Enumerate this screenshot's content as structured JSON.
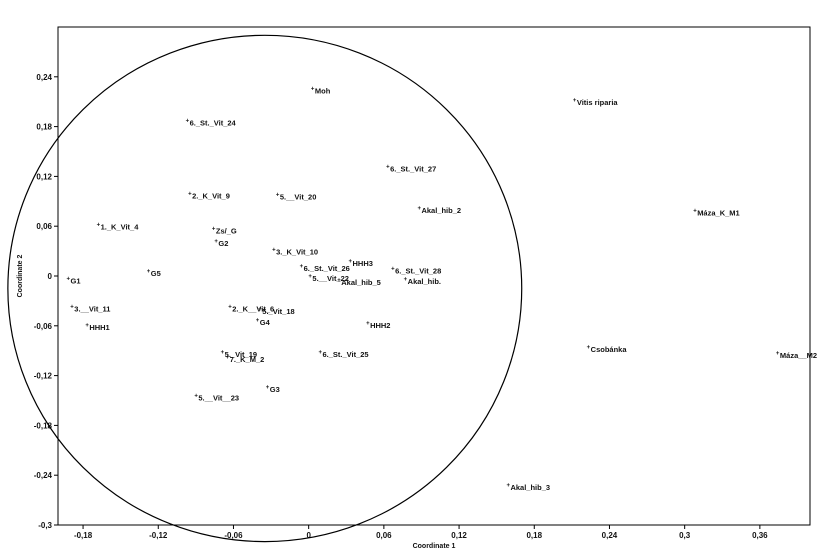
{
  "chart_data": {
    "type": "scatter",
    "title": "",
    "xlabel": "Coordinate 1",
    "ylabel": "Coordinate 2",
    "xlim": [
      -0.2,
      0.4
    ],
    "ylim": [
      -0.3,
      0.3
    ],
    "xticks": [
      "-0,18",
      "-0,12",
      "-0,06",
      "0",
      "0,06",
      "0,12",
      "0,18",
      "0,24",
      "0,3",
      "0,36"
    ],
    "yticks": [
      "0,24",
      "0,18",
      "0,12",
      "0,06",
      "0",
      "-0,06",
      "-0,12",
      "-0,18",
      "-0,24",
      "-0,3"
    ],
    "xtick_values": [
      -0.18,
      -0.12,
      -0.06,
      0,
      0.06,
      0.12,
      0.18,
      0.24,
      0.3,
      0.36
    ],
    "ytick_values": [
      0.24,
      0.18,
      0.12,
      0.06,
      0,
      -0.06,
      -0.12,
      -0.18,
      -0.24,
      -0.3
    ],
    "grid": false,
    "point_marker": "+",
    "points": [
      {
        "label": "Moh",
        "x": 0.003,
        "y": 0.225
      },
      {
        "label": "Vitis riparia",
        "x": 0.212,
        "y": 0.211
      },
      {
        "label": "6._St._Vit_24",
        "x": -0.097,
        "y": 0.186
      },
      {
        "label": "6._St._Vit_27",
        "x": 0.063,
        "y": 0.131
      },
      {
        "label": "2._K_Vit_9",
        "x": -0.095,
        "y": 0.098
      },
      {
        "label": "5.__Vit_20",
        "x": -0.025,
        "y": 0.097
      },
      {
        "label": "Akal_hib_2",
        "x": 0.088,
        "y": 0.081
      },
      {
        "label": "Máza_K_M1",
        "x": 0.308,
        "y": 0.078
      },
      {
        "label": "1._K_Vit_4",
        "x": -0.168,
        "y": 0.061
      },
      {
        "label": "Zs/_G",
        "x": -0.076,
        "y": 0.056
      },
      {
        "label": "G2",
        "x": -0.074,
        "y": 0.041
      },
      {
        "label": "3._K_Vit_10",
        "x": -0.028,
        "y": 0.031
      },
      {
        "label": "HHH3",
        "x": 0.033,
        "y": 0.017
      },
      {
        "label": "6._St._Vit_26",
        "x": -0.006,
        "y": 0.011
      },
      {
        "label": "6._St._Vit_28",
        "x": 0.067,
        "y": 0.008
      },
      {
        "label": "G5",
        "x": -0.128,
        "y": 0.005
      },
      {
        "label": "5.__Vit_22",
        "x": 0.001,
        "y": -0.001
      },
      {
        "label": "Akal_hib_5",
        "x": 0.024,
        "y": -0.006
      },
      {
        "label": "Akal_hib.",
        "x": 0.077,
        "y": -0.005
      },
      {
        "label": "G1",
        "x": -0.192,
        "y": -0.004
      },
      {
        "label": "3.__Vit_11",
        "x": -0.189,
        "y": -0.038
      },
      {
        "label": "2._K__Vit_6",
        "x": -0.063,
        "y": -0.038
      },
      {
        "label": "5._Vit_18",
        "x": -0.039,
        "y": -0.041
      },
      {
        "label": "G4",
        "x": -0.041,
        "y": -0.054
      },
      {
        "label": "HHH2",
        "x": 0.047,
        "y": -0.058
      },
      {
        "label": "HHH1",
        "x": -0.177,
        "y": -0.06
      },
      {
        "label": "Csobánka",
        "x": 0.223,
        "y": -0.087
      },
      {
        "label": "Máza__M2",
        "x": 0.374,
        "y": -0.094
      },
      {
        "label": "5._Vit_19",
        "x": -0.069,
        "y": -0.093
      },
      {
        "label": "7._K_M_2",
        "x": -0.065,
        "y": -0.099
      },
      {
        "label": "6._St._Vit_25",
        "x": 0.009,
        "y": -0.093
      },
      {
        "label": "G3",
        "x": -0.033,
        "y": -0.135
      },
      {
        "label": "5.__Vit__23",
        "x": -0.09,
        "y": -0.145
      },
      {
        "label": "Akal_hib_3",
        "x": 0.159,
        "y": -0.253
      }
    ],
    "ellipses": [
      {
        "cx": -0.035,
        "cy": -0.015,
        "rx": 0.205,
        "ry": 0.305
      }
    ]
  }
}
